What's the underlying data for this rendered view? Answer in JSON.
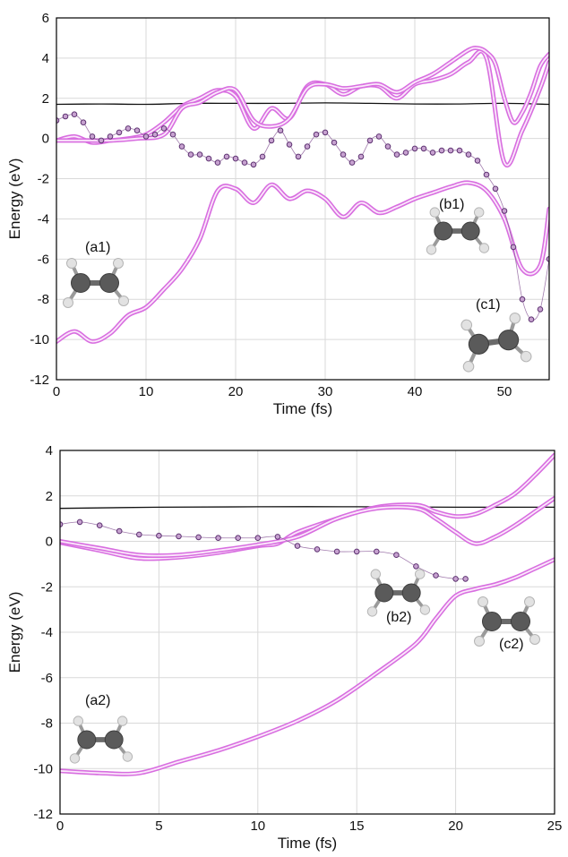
{
  "chart_data": [
    {
      "type": "line",
      "title": "",
      "xlabel": "Time (fs)",
      "ylabel": "Energy (eV)",
      "xlim": [
        0,
        55
      ],
      "ylim": [
        -12,
        6
      ],
      "xticks": [
        "0",
        "10",
        "20",
        "30",
        "40",
        "50"
      ],
      "yticks": [
        "-12",
        "-10",
        "-8",
        "-6",
        "-4",
        "-2",
        "0",
        "2",
        "4",
        "6"
      ],
      "grid": true,
      "molecule_labels": [
        "(a1)",
        "(b1)",
        "(c1)"
      ],
      "series": [
        {
          "style": "black-line",
          "x": [
            0,
            5,
            10,
            15,
            20,
            25,
            30,
            35,
            40,
            45,
            50,
            55
          ],
          "y": [
            1.7,
            1.72,
            1.7,
            1.75,
            1.75,
            1.75,
            1.77,
            1.75,
            1.72,
            1.72,
            1.75,
            1.7
          ]
        },
        {
          "style": "magenta-band",
          "x": [
            0,
            2,
            4,
            6,
            8,
            10,
            12,
            14,
            16,
            18,
            20,
            22,
            24,
            26,
            28,
            30,
            32,
            34,
            36,
            38,
            40,
            42,
            44,
            46,
            48,
            50,
            52,
            54,
            55
          ],
          "y": [
            -10.1,
            -9.6,
            -10.1,
            -9.7,
            -8.8,
            -8.4,
            -7.5,
            -6.5,
            -5.0,
            -2.6,
            -2.5,
            -3.2,
            -2.3,
            -3.0,
            -2.6,
            -3.0,
            -3.9,
            -3.2,
            -3.7,
            -3.4,
            -3.0,
            -2.7,
            -2.4,
            -2.2,
            -2.6,
            -4.0,
            -6.5,
            -6.3,
            -3.5
          ]
        },
        {
          "style": "magenta-band",
          "x": [
            0,
            2,
            4,
            6,
            8,
            10,
            12,
            14,
            16,
            18,
            20,
            22,
            24,
            26,
            28,
            30,
            32,
            34,
            36,
            38,
            40,
            42,
            44,
            46,
            48,
            50,
            52,
            54,
            55
          ],
          "y": [
            -0.1,
            0.1,
            -0.2,
            -0.1,
            0.0,
            0.2,
            0.8,
            1.6,
            2.0,
            2.4,
            2.1,
            0.5,
            1.5,
            1.0,
            2.6,
            2.7,
            2.2,
            2.6,
            2.6,
            2.0,
            2.7,
            2.9,
            3.2,
            3.8,
            4.0,
            -1.2,
            0.4,
            2.5,
            3.8
          ]
        },
        {
          "style": "magenta-band",
          "x": [
            0,
            3,
            6,
            9,
            12,
            14,
            16,
            18,
            20,
            22,
            24,
            26,
            28,
            30,
            32,
            34,
            36,
            38,
            40,
            42,
            44,
            46,
            47,
            48,
            49,
            50,
            51,
            52,
            53,
            54,
            55
          ],
          "y": [
            -0.1,
            -0.1,
            -0.1,
            0.0,
            0.2,
            1.5,
            1.8,
            2.3,
            2.4,
            0.9,
            0.6,
            1.0,
            2.5,
            2.7,
            2.5,
            2.6,
            2.7,
            2.3,
            2.8,
            3.2,
            3.8,
            4.4,
            4.5,
            4.3,
            3.7,
            2.0,
            0.8,
            1.3,
            2.3,
            3.6,
            4.2
          ]
        },
        {
          "style": "circle-markers",
          "x": [
            0,
            1,
            2,
            3,
            4,
            5,
            6,
            7,
            8,
            9,
            10,
            11,
            12,
            13,
            14,
            15,
            16,
            17,
            18,
            19,
            20,
            21,
            22,
            23,
            24,
            25,
            26,
            27,
            28,
            29,
            30,
            31,
            32,
            33,
            34,
            35,
            36,
            37,
            38,
            39,
            40,
            41,
            42,
            43,
            44,
            45,
            46,
            47,
            48,
            49,
            50,
            51,
            52,
            53,
            54,
            55
          ],
          "y": [
            0.9,
            1.1,
            1.2,
            0.8,
            0.1,
            -0.1,
            0.1,
            0.3,
            0.5,
            0.4,
            0.1,
            0.2,
            0.5,
            0.2,
            -0.4,
            -0.8,
            -0.8,
            -1.0,
            -1.2,
            -0.9,
            -1.0,
            -1.2,
            -1.3,
            -0.9,
            -0.1,
            0.4,
            -0.3,
            -0.9,
            -0.4,
            0.2,
            0.3,
            -0.2,
            -0.8,
            -1.2,
            -0.9,
            -0.1,
            0.1,
            -0.4,
            -0.8,
            -0.7,
            -0.5,
            -0.5,
            -0.7,
            -0.6,
            -0.6,
            -0.6,
            -0.8,
            -1.1,
            -1.8,
            -2.5,
            -3.6,
            -5.4,
            -8.0,
            -9.0,
            -8.5,
            -6.0
          ]
        }
      ]
    },
    {
      "type": "line",
      "title": "",
      "xlabel": "Time (fs)",
      "ylabel": "Energy (eV)",
      "xlim": [
        0,
        25
      ],
      "ylim": [
        -12,
        4
      ],
      "xticks": [
        "0",
        "5",
        "10",
        "15",
        "20",
        "25"
      ],
      "yticks": [
        "-12",
        "-10",
        "-8",
        "-6",
        "-4",
        "-2",
        "0",
        "2",
        "4"
      ],
      "grid": true,
      "molecule_labels": [
        "(a2)",
        "(b2)",
        "(c2)"
      ],
      "series": [
        {
          "style": "black-line",
          "x": [
            0,
            5,
            10,
            15,
            20,
            25
          ],
          "y": [
            1.45,
            1.5,
            1.52,
            1.52,
            1.5,
            1.5
          ]
        },
        {
          "style": "magenta-band",
          "x": [
            0,
            2,
            4,
            6,
            8,
            10,
            12,
            14,
            16,
            18,
            19,
            20,
            21,
            22,
            23,
            24,
            25
          ],
          "y": [
            -10.1,
            -10.2,
            -10.2,
            -9.7,
            -9.2,
            -8.6,
            -7.9,
            -7.0,
            -5.8,
            -4.5,
            -3.4,
            -2.4,
            -2.1,
            -1.9,
            -1.6,
            -1.2,
            -0.8
          ]
        },
        {
          "style": "magenta-band",
          "x": [
            0,
            2,
            4,
            6,
            8,
            10,
            11,
            12,
            14,
            16,
            18,
            19,
            20,
            21,
            22,
            23,
            24,
            25
          ],
          "y": [
            -0.05,
            -0.4,
            -0.75,
            -0.7,
            -0.5,
            -0.2,
            -0.1,
            0.4,
            1.0,
            1.5,
            1.6,
            1.3,
            1.1,
            1.2,
            1.6,
            2.1,
            2.9,
            3.8
          ]
        },
        {
          "style": "magenta-band",
          "x": [
            0,
            2,
            4,
            6,
            8,
            10,
            12,
            14,
            16,
            18,
            19,
            20,
            21,
            22,
            23,
            24,
            25
          ],
          "y": [
            0.0,
            -0.3,
            -0.6,
            -0.6,
            -0.4,
            -0.15,
            0.2,
            1.0,
            1.45,
            1.45,
            1.0,
            0.4,
            -0.1,
            0.2,
            0.7,
            1.3,
            1.9
          ]
        },
        {
          "style": "circle-markers",
          "x": [
            0,
            1,
            2,
            3,
            4,
            5,
            6,
            7,
            8,
            9,
            10,
            11,
            12,
            13,
            14,
            15,
            16,
            17,
            18,
            19,
            20,
            20.5
          ],
          "y": [
            0.75,
            0.85,
            0.7,
            0.45,
            0.3,
            0.25,
            0.22,
            0.18,
            0.15,
            0.15,
            0.15,
            0.2,
            -0.2,
            -0.35,
            -0.45,
            -0.45,
            -0.45,
            -0.6,
            -1.1,
            -1.5,
            -1.65,
            -1.65
          ]
        }
      ]
    }
  ]
}
